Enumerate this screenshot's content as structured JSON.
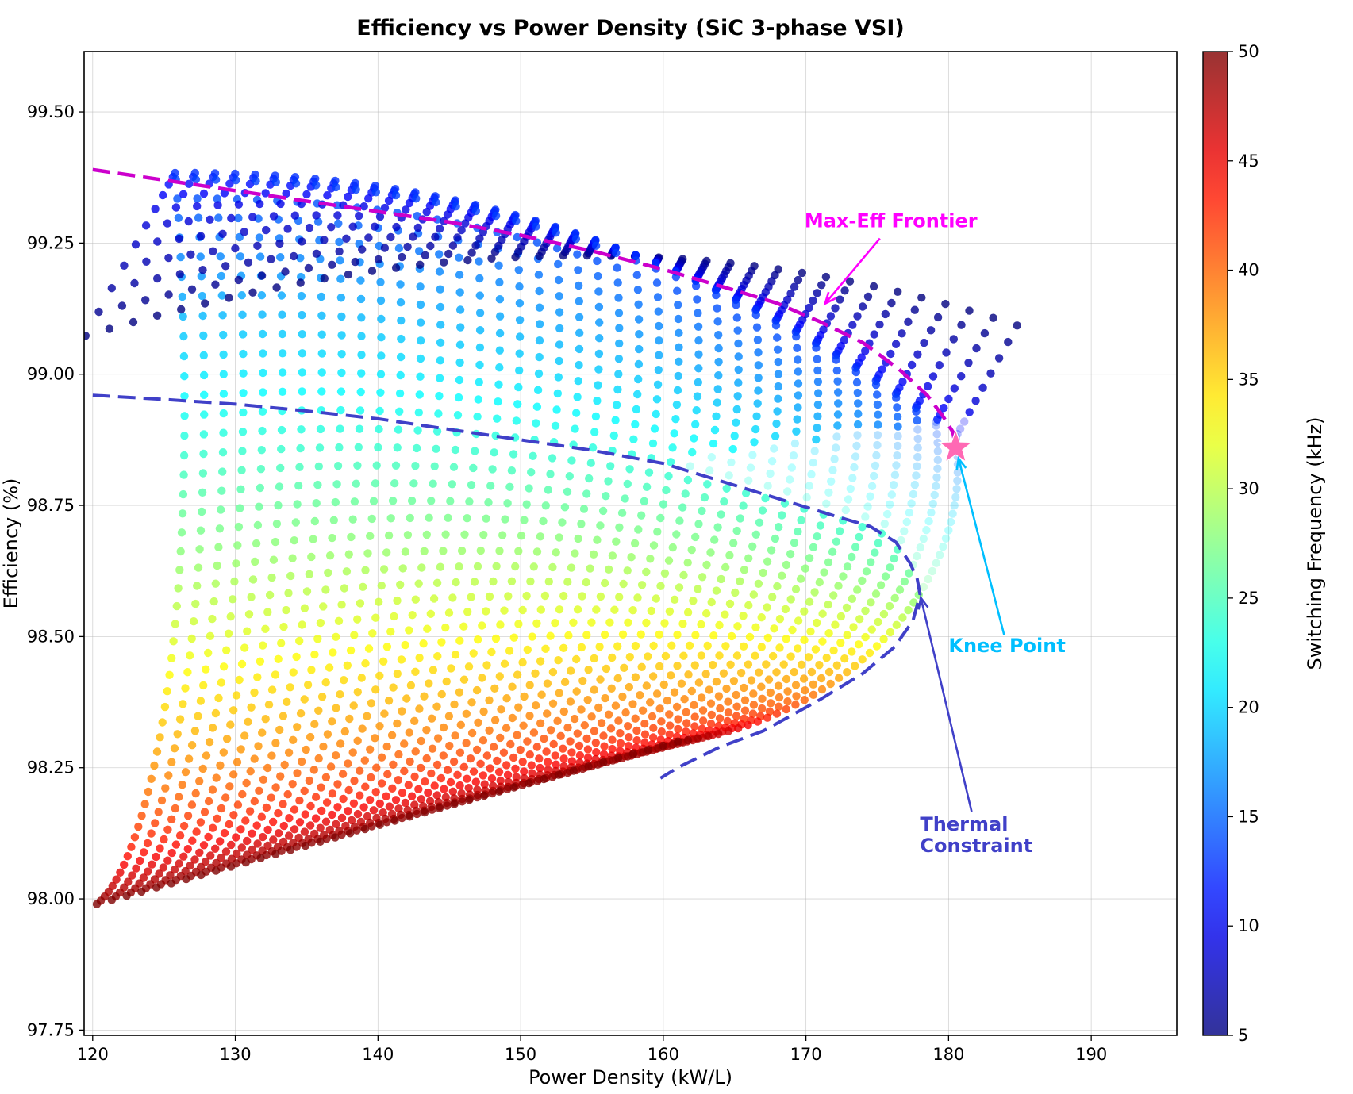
{
  "chart_data": {
    "type": "scatter",
    "title": "Efficiency vs Power Density  (SiC 3-phase VSI)",
    "xlabel": "Power Density (kW/L)",
    "ylabel": "Efficiency (%)",
    "xlim": [
      119.4,
      196.0
    ],
    "ylim": [
      97.74,
      99.615
    ],
    "x_ticks": [
      120,
      130,
      140,
      150,
      160,
      170,
      180,
      190
    ],
    "y_ticks": [
      97.75,
      98.0,
      98.25,
      98.5,
      98.75,
      99.0,
      99.25,
      99.5
    ],
    "y_tick_decimals": 2,
    "grid": true,
    "colorbar": {
      "label": "Switching Frequency (kHz)",
      "min": 5,
      "max": 50,
      "ticks": [
        5,
        10,
        15,
        20,
        25,
        30,
        35,
        40,
        45,
        50
      ],
      "colormap": "jet",
      "alpha": 0.8
    },
    "series": [
      {
        "kind": "design-space-grid",
        "color_by": "switching_frequency_kHz",
        "curve_count": 40,
        "points_per_curve": 60,
        "curve_base_pd": {
          "first": 119.5,
          "last": 184.8
        },
        "curve_peak_eff": {
          "first": 99.385,
          "last": 98.88,
          "exponent": 2.2
        },
        "curve_knee_pd": {
          "first": 125.8,
          "last": 180.5
        },
        "low_freq_slope_eff_per_kW_L": 0.09,
        "high_freq_bottom_eff": 98.21,
        "high_freq_bottom_pd": 160.0,
        "high_freq_bottom_spread": 0.09,
        "violating_region": "below thermal constraint curve (faded)"
      },
      {
        "name": "Max-Eff Frontier",
        "kind": "line",
        "style": "dashed",
        "color": "#cc00cc",
        "x": [
          120.0,
          125.0,
          130.0,
          135.0,
          140.0,
          145.0,
          150.0,
          155.0,
          160.0,
          165.0,
          168.0,
          171.0,
          174.0,
          176.5,
          178.5,
          179.6,
          180.3,
          180.5
        ],
        "y": [
          99.39,
          99.37,
          99.35,
          99.33,
          99.31,
          99.29,
          99.265,
          99.235,
          99.2,
          99.16,
          99.135,
          99.1,
          99.06,
          99.01,
          98.96,
          98.92,
          98.89,
          98.86
        ]
      },
      {
        "name": "Thermal Constraint",
        "kind": "line",
        "style": "dashed",
        "color": "#4040c8",
        "x": [
          120.0,
          125.0,
          130.0,
          135.0,
          140.0,
          145.0,
          150.0,
          155.0,
          160.0,
          163.0,
          166.0,
          169.0,
          172.0,
          174.5,
          176.3,
          177.3,
          177.8,
          178.0,
          177.5,
          176.2,
          174.0,
          171.0,
          167.0,
          164.0,
          161.0,
          159.8
        ],
        "y": [
          98.96,
          98.952,
          98.943,
          98.93,
          98.915,
          98.895,
          98.875,
          98.855,
          98.83,
          98.805,
          98.78,
          98.755,
          98.73,
          98.71,
          98.68,
          98.64,
          98.61,
          98.58,
          98.53,
          98.48,
          98.43,
          98.38,
          98.32,
          98.29,
          98.25,
          98.23
        ]
      },
      {
        "name": "Knee Point",
        "kind": "marker",
        "marker": "star",
        "color": "#ff69b4",
        "x": 180.5,
        "y": 98.86
      }
    ],
    "annotations": [
      {
        "label": "Max-Eff Frontier",
        "color": "#ff00ff",
        "text_x": 169.9,
        "text_y": 99.28,
        "arrow_x": 171.2,
        "arrow_y": 99.13
      },
      {
        "label": "Knee Point",
        "color": "#00bfff",
        "text_x": 180.0,
        "text_y": 98.47,
        "arrow_x": 180.5,
        "arrow_y": 98.86
      },
      {
        "label": "Thermal Constraint",
        "color": "#4040c8",
        "text_x": 178.0,
        "text_y": 98.13,
        "arrow_x": 178.0,
        "arrow_y": 98.58
      }
    ]
  }
}
